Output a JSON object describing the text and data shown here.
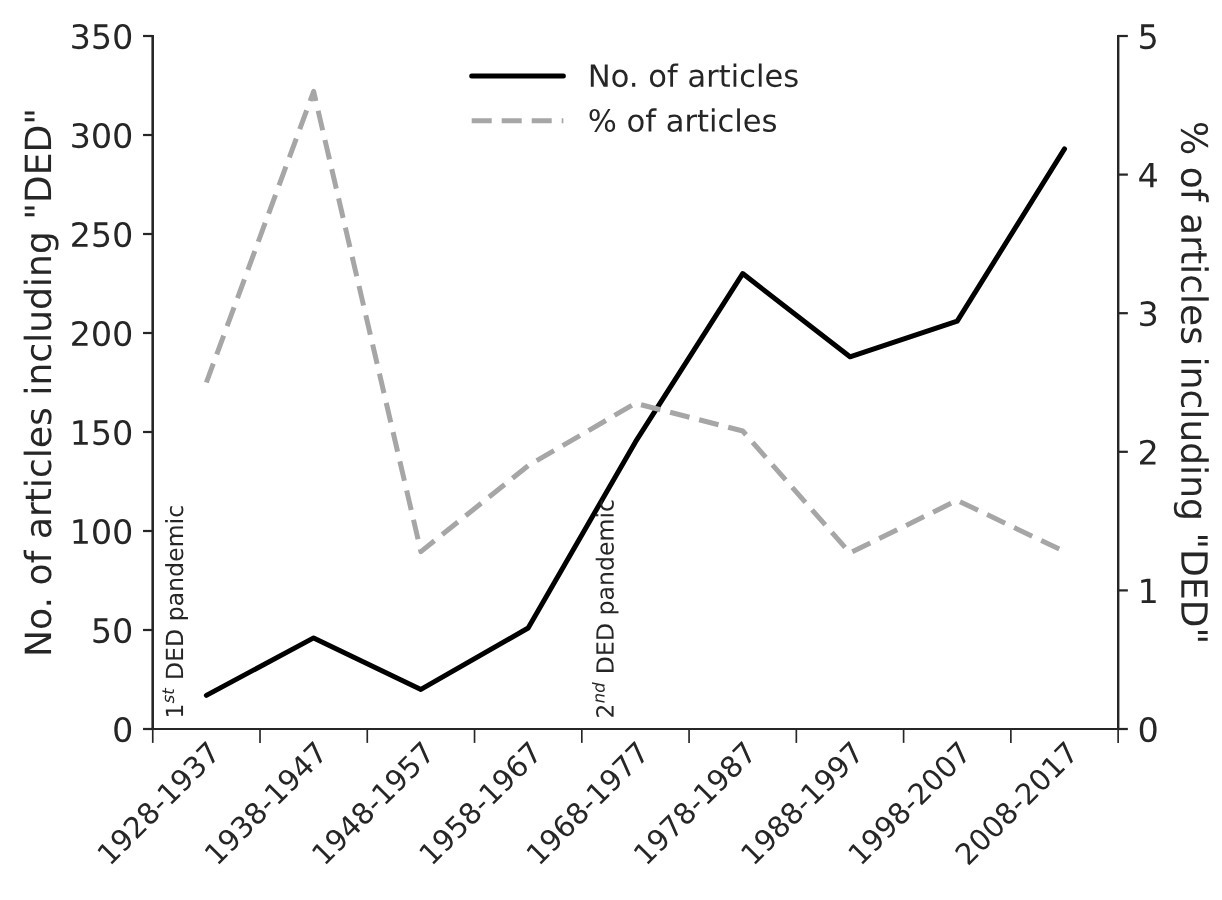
{
  "chart_data": {
    "type": "line",
    "xlabel": null,
    "ylabel": "No. of articles including \"DED\"",
    "y2label": "% of articles including \"DED\"",
    "categories": [
      "1928-1937",
      "1938-1947",
      "1948-1957",
      "1958-1967",
      "1968-1977",
      "1978-1987",
      "1988-1997",
      "1998-2007",
      "2008-2017"
    ],
    "series": [
      {
        "name": "No. of articles",
        "color": "#000000",
        "line_style": "solid",
        "values": [
          17,
          46,
          20,
          51,
          145,
          230,
          188,
          206,
          293
        ]
      },
      {
        "name": "% of articles",
        "color": "#a6a6a6",
        "line_style": "dashed",
        "axis": "y2",
        "values": [
          2.5,
          4.6,
          1.28,
          1.9,
          2.35,
          2.15,
          1.27,
          1.65,
          1.28
        ]
      }
    ],
    "ylim": [
      0,
      350
    ],
    "yticks": [
      0,
      50,
      100,
      150,
      200,
      250,
      300,
      350
    ],
    "y2lim": [
      0,
      5
    ],
    "y2ticks": [
      0,
      1,
      2,
      3,
      4,
      5
    ],
    "annotations": [
      "1$^{st}$ DED pandemic",
      "2$^{nd}$ DED pandemic"
    ],
    "legend": "top",
    "grid": false,
    "marker": "none"
  }
}
